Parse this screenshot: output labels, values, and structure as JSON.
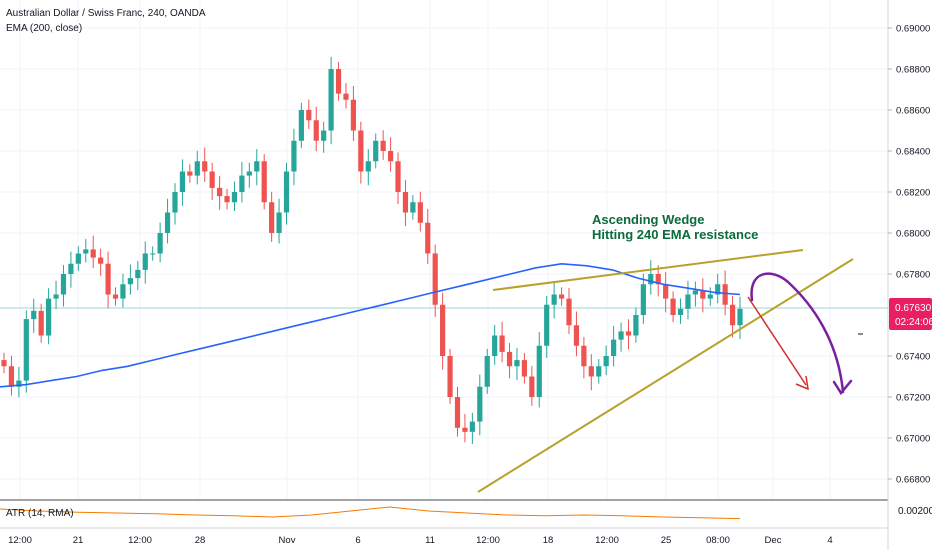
{
  "chart_title": "Australian Dollar / Swiss Franc, 240, OANDA",
  "indicator_label": "EMA (200, close)",
  "atr_label": "ATR (14, RMA)",
  "annotation": {
    "line1": "Ascending Wedge",
    "line2": "Hitting 240 EMA resistance"
  },
  "colors": {
    "up": "#26a69a",
    "down": "#ef5350",
    "ema": "#2962ff",
    "wedge": "#b8a12a",
    "atr": "#f57c00",
    "arrow_red": "#d32f2f",
    "arrow_purple": "#7b1fa2",
    "annotation": "#0b6b3a",
    "price_label_bg": "#e91e63"
  },
  "chart_data": {
    "type": "candlestick",
    "instrument": "Australian Dollar / Swiss Franc",
    "timeframe": "240",
    "broker": "OANDA",
    "ylim": [
      0.666,
      0.691
    ],
    "y_ticks": [
      "0.69000",
      "0.68800",
      "0.68600",
      "0.68400",
      "0.68200",
      "0.68000",
      "0.67800",
      "0.67400",
      "0.67200",
      "0.67000",
      "0.66800"
    ],
    "x_ticks": [
      "12:00",
      "21",
      "12:00",
      "28",
      "Nov",
      "6",
      "11",
      "12:00",
      "18",
      "12:00",
      "25",
      "08:00",
      "Dec",
      "4"
    ],
    "current_price": "0.67630",
    "countdown": "02:24:06",
    "atr_value": "0.00200",
    "series": [
      {
        "name": "AUDCHF",
        "type": "candlestick",
        "close": [
          0.6735,
          0.6725,
          0.6728,
          0.6758,
          0.6762,
          0.675,
          0.6768,
          0.677,
          0.678,
          0.6785,
          0.679,
          0.6792,
          0.6788,
          0.6785,
          0.677,
          0.6768,
          0.6775,
          0.6778,
          0.6782,
          0.679,
          0.679,
          0.68,
          0.681,
          0.682,
          0.683,
          0.6828,
          0.6835,
          0.683,
          0.6822,
          0.6818,
          0.6815,
          0.682,
          0.6828,
          0.683,
          0.6835,
          0.6815,
          0.68,
          0.681,
          0.683,
          0.6845,
          0.686,
          0.6855,
          0.6845,
          0.685,
          0.688,
          0.6868,
          0.6865,
          0.685,
          0.683,
          0.6835,
          0.6845,
          0.684,
          0.6835,
          0.682,
          0.681,
          0.6815,
          0.6805,
          0.679,
          0.6765,
          0.674,
          0.672,
          0.6705,
          0.6703,
          0.6708,
          0.6725,
          0.674,
          0.675,
          0.6742,
          0.6735,
          0.6738,
          0.673,
          0.672,
          0.6745,
          0.6765,
          0.677,
          0.6768,
          0.6755,
          0.6745,
          0.6735,
          0.673,
          0.6735,
          0.674,
          0.6748,
          0.6752,
          0.675,
          0.676,
          0.6775,
          0.678,
          0.6775,
          0.6768,
          0.676,
          0.6763,
          0.677,
          0.6772,
          0.6768,
          0.677,
          0.6775,
          0.6765,
          0.6755,
          0.6763
        ]
      }
    ],
    "ema_200": [
      0.6725,
      0.6726,
      0.6728,
      0.673,
      0.6733,
      0.6735,
      0.6738,
      0.6741,
      0.6744,
      0.6747,
      0.675,
      0.6753,
      0.6756,
      0.6759,
      0.6762,
      0.6765,
      0.6768,
      0.6771,
      0.6774,
      0.6777,
      0.678,
      0.6783,
      0.6785,
      0.6784,
      0.6782,
      0.6778,
      0.6775,
      0.6773,
      0.6771,
      0.677
    ],
    "atr_14": [
      0.0022,
      0.00215,
      0.00212,
      0.0021,
      0.00208,
      0.00205,
      0.00203,
      0.002,
      0.00205,
      0.00215,
      0.00225,
      0.00215,
      0.0021,
      0.00205,
      0.00203,
      0.00205,
      0.00203,
      0.002,
      0.00198,
      0.00196
    ]
  }
}
